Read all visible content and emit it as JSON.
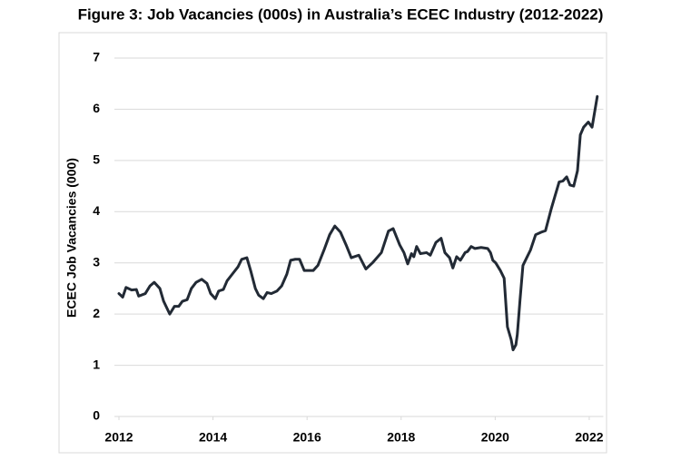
{
  "chart_data": {
    "type": "line",
    "title": "Figure 3: Job Vacancies (000s) in Australia’s ECEC Industry (2012-2022)",
    "y_label": "ECEC Job Vacancies (000)",
    "color": "#222a35",
    "grid": true,
    "xlim": [
      2012,
      2022.3
    ],
    "xticks": [
      2012,
      2014,
      2016,
      2018,
      2020,
      2022
    ],
    "ylim": [
      0,
      7
    ],
    "yticks": [
      0,
      1,
      2,
      3,
      4,
      5,
      6,
      7
    ],
    "x": [
      2012,
      2012.08,
      2012.15,
      2012.27,
      2012.37,
      2012.42,
      2012.56,
      2012.66,
      2012.75,
      2012.87,
      2012.95,
      2013.08,
      2013.18,
      2013.27,
      2013.35,
      2013.45,
      2013.54,
      2013.64,
      2013.76,
      2013.87,
      2013.95,
      2014.05,
      2014.12,
      2014.22,
      2014.3,
      2014.41,
      2014.53,
      2014.61,
      2014.72,
      2014.8,
      2014.9,
      2014.97,
      2015.07,
      2015.15,
      2015.24,
      2015.36,
      2015.46,
      2015.57,
      2015.65,
      2015.75,
      2015.84,
      2015.94,
      2016.03,
      2016.13,
      2016.23,
      2016.36,
      2016.48,
      2016.59,
      2016.71,
      2016.83,
      2016.94,
      2017.1,
      2017.25,
      2017.39,
      2017.58,
      2017.73,
      2017.83,
      2017.97,
      2018.06,
      2018.14,
      2018.22,
      2018.27,
      2018.33,
      2018.41,
      2018.54,
      2018.62,
      2018.74,
      2018.85,
      2018.93,
      2019.03,
      2019.1,
      2019.18,
      2019.26,
      2019.36,
      2019.41,
      2019.49,
      2019.57,
      2019.7,
      2019.84,
      2019.9,
      2019.95,
      2020.01,
      2020.11,
      2020.19,
      2020.26,
      2020.34,
      2020.38,
      2020.44,
      2020.47,
      2020.53,
      2020.59,
      2020.67,
      2020.75,
      2020.86,
      2020.98,
      2021.07,
      2021.19,
      2021.27,
      2021.36,
      2021.44,
      2021.52,
      2021.59,
      2021.67,
      2021.75,
      2021.81,
      2021.88,
      2021.98,
      2022.06,
      2022.17
    ],
    "values": [
      2.4,
      2.33,
      2.52,
      2.47,
      2.48,
      2.35,
      2.4,
      2.55,
      2.62,
      2.5,
      2.25,
      2.0,
      2.15,
      2.15,
      2.25,
      2.28,
      2.5,
      2.62,
      2.68,
      2.6,
      2.4,
      2.3,
      2.45,
      2.48,
      2.65,
      2.78,
      2.92,
      3.07,
      3.1,
      2.85,
      2.5,
      2.37,
      2.3,
      2.42,
      2.4,
      2.45,
      2.55,
      2.78,
      3.05,
      3.07,
      3.07,
      2.85,
      2.85,
      2.85,
      2.95,
      3.25,
      3.55,
      3.72,
      3.6,
      3.35,
      3.1,
      3.15,
      2.88,
      3.0,
      3.2,
      3.62,
      3.67,
      3.35,
      3.2,
      2.98,
      3.18,
      3.12,
      3.32,
      3.18,
      3.2,
      3.15,
      3.4,
      3.48,
      3.2,
      3.1,
      2.9,
      3.12,
      3.05,
      3.2,
      3.22,
      3.32,
      3.28,
      3.3,
      3.28,
      3.2,
      3.05,
      3.0,
      2.85,
      2.7,
      1.75,
      1.5,
      1.3,
      1.4,
      1.6,
      2.3,
      2.95,
      3.1,
      3.25,
      3.55,
      3.6,
      3.63,
      4.05,
      4.3,
      4.58,
      4.6,
      4.68,
      4.52,
      4.5,
      4.8,
      5.5,
      5.65,
      5.75,
      5.65,
      6.25
    ]
  }
}
